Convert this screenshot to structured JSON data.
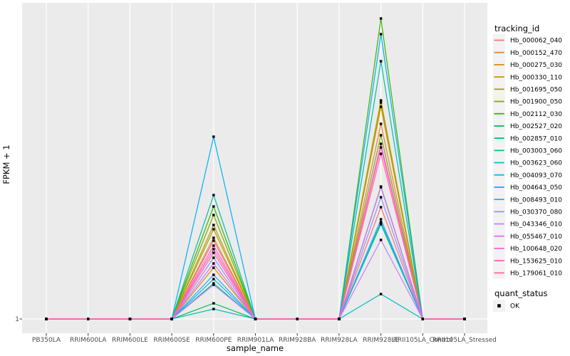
{
  "chart_data": {
    "type": "line",
    "title": "",
    "xlabel": "sample_name",
    "ylabel": "FPKM + 1",
    "x_categories": [
      "PB350LA",
      "RRIM600LA",
      "RRIM600LE",
      "RRIM600SE",
      "RRIM600PE",
      "RRIM901LA",
      "RRIM928BA",
      "RRIM928LA",
      "RRIM928LE",
      "RRII105LA_Control",
      "RRII105LA_Stressed"
    ],
    "y_ticks": [
      "1"
    ],
    "ylim": [
      1,
      445
    ],
    "y_note": "Only the tick '1' is labeled; peak magnitudes are estimated in relative linear units from pixel heights. All series sit at 1 everywhere except peaks at RRIM600PE and RRIM928LE.",
    "grid": "white vertical gridline per category plus horizontal gridline at y=1 on gray panel",
    "legend_position": "right",
    "legend_title": "tracking_id",
    "quant_legend": {
      "title": "quant_status",
      "items": [
        "OK"
      ],
      "marker": "black-filled-square"
    },
    "point_marker": "black-filled-square",
    "series": [
      {
        "name": "Hb_000062_040",
        "color": "#F8766D",
        "values": [
          1,
          1,
          1,
          1,
          111,
          1,
          1,
          1,
          158,
          1,
          1
        ]
      },
      {
        "name": "Hb_000152_470",
        "color": "#EA8331",
        "values": [
          1,
          1,
          1,
          1,
          115,
          1,
          1,
          1,
          275,
          1,
          1
        ]
      },
      {
        "name": "Hb_000275_030",
        "color": "#D89000",
        "values": [
          1,
          1,
          1,
          1,
          73,
          1,
          1,
          1,
          299,
          1,
          1
        ]
      },
      {
        "name": "Hb_000330_110",
        "color": "#C09B00",
        "values": [
          1,
          1,
          1,
          1,
          133,
          1,
          1,
          1,
          308,
          1,
          1
        ]
      },
      {
        "name": "Hb_001695_050",
        "color": "#A3A500",
        "values": [
          1,
          1,
          1,
          1,
          127,
          1,
          1,
          1,
          305,
          1,
          1
        ]
      },
      {
        "name": "Hb_001900_050",
        "color": "#7CAE00",
        "values": [
          1,
          1,
          1,
          1,
          147,
          1,
          1,
          1,
          259,
          1,
          1
        ]
      },
      {
        "name": "Hb_002112_030",
        "color": "#39B600",
        "values": [
          1,
          1,
          1,
          1,
          159,
          1,
          1,
          1,
          423,
          1,
          1
        ]
      },
      {
        "name": "Hb_002527_020",
        "color": "#00BB4E",
        "values": [
          1,
          1,
          1,
          1,
          23,
          1,
          1,
          1,
          187,
          1,
          1
        ]
      },
      {
        "name": "Hb_002857_010",
        "color": "#00BF7D",
        "values": [
          1,
          1,
          1,
          1,
          51,
          1,
          1,
          1,
          134,
          1,
          1
        ]
      },
      {
        "name": "Hb_003003_060",
        "color": "#00C1A3",
        "values": [
          1,
          1,
          1,
          1,
          175,
          1,
          1,
          1,
          363,
          1,
          1
        ]
      },
      {
        "name": "Hb_003623_060",
        "color": "#00BFC4",
        "values": [
          1,
          1,
          1,
          1,
          15,
          1,
          1,
          1,
          36,
          1,
          1
        ]
      },
      {
        "name": "Hb_004093_070",
        "color": "#00BAE0",
        "values": [
          1,
          1,
          1,
          1,
          57,
          1,
          1,
          1,
          137,
          1,
          1
        ]
      },
      {
        "name": "Hb_004643_050",
        "color": "#00B0F6",
        "values": [
          1,
          1,
          1,
          1,
          257,
          1,
          1,
          1,
          401,
          1,
          1
        ]
      },
      {
        "name": "Hb_008493_010",
        "color": "#35A2FF",
        "values": [
          1,
          1,
          1,
          1,
          63,
          1,
          1,
          1,
          141,
          1,
          1
        ]
      },
      {
        "name": "Hb_030370_080",
        "color": "#9590FF",
        "values": [
          1,
          1,
          1,
          1,
          87,
          1,
          1,
          1,
          172,
          1,
          1
        ]
      },
      {
        "name": "Hb_043346_010",
        "color": "#C77CFF",
        "values": [
          1,
          1,
          1,
          1,
          49,
          1,
          1,
          1,
          112,
          1,
          1
        ]
      },
      {
        "name": "Hb_055467_010",
        "color": "#E76BF3",
        "values": [
          1,
          1,
          1,
          1,
          79,
          1,
          1,
          1,
          186,
          1,
          1
        ]
      },
      {
        "name": "Hb_100648_020",
        "color": "#FA62DB",
        "values": [
          1,
          1,
          1,
          1,
          104,
          1,
          1,
          1,
          247,
          1,
          1
        ]
      },
      {
        "name": "Hb_153625_010",
        "color": "#FF62BC",
        "values": [
          1,
          1,
          1,
          1,
          99,
          1,
          1,
          1,
          242,
          1,
          1
        ]
      },
      {
        "name": "Hb_179061_010",
        "color": "#FF6A98",
        "values": [
          1,
          1,
          1,
          1,
          94,
          1,
          1,
          1,
          233,
          1,
          1
        ]
      }
    ]
  },
  "colors": {
    "background": "#FFFFFF",
    "panel": "#EBEBEB",
    "gridline": "#FFFFFF",
    "axis_text": "#4D4D4D",
    "title_text": "#000000",
    "legend_key_bg": "#F2F2F2",
    "point": "#000000",
    "tick_mark": "#333333"
  }
}
